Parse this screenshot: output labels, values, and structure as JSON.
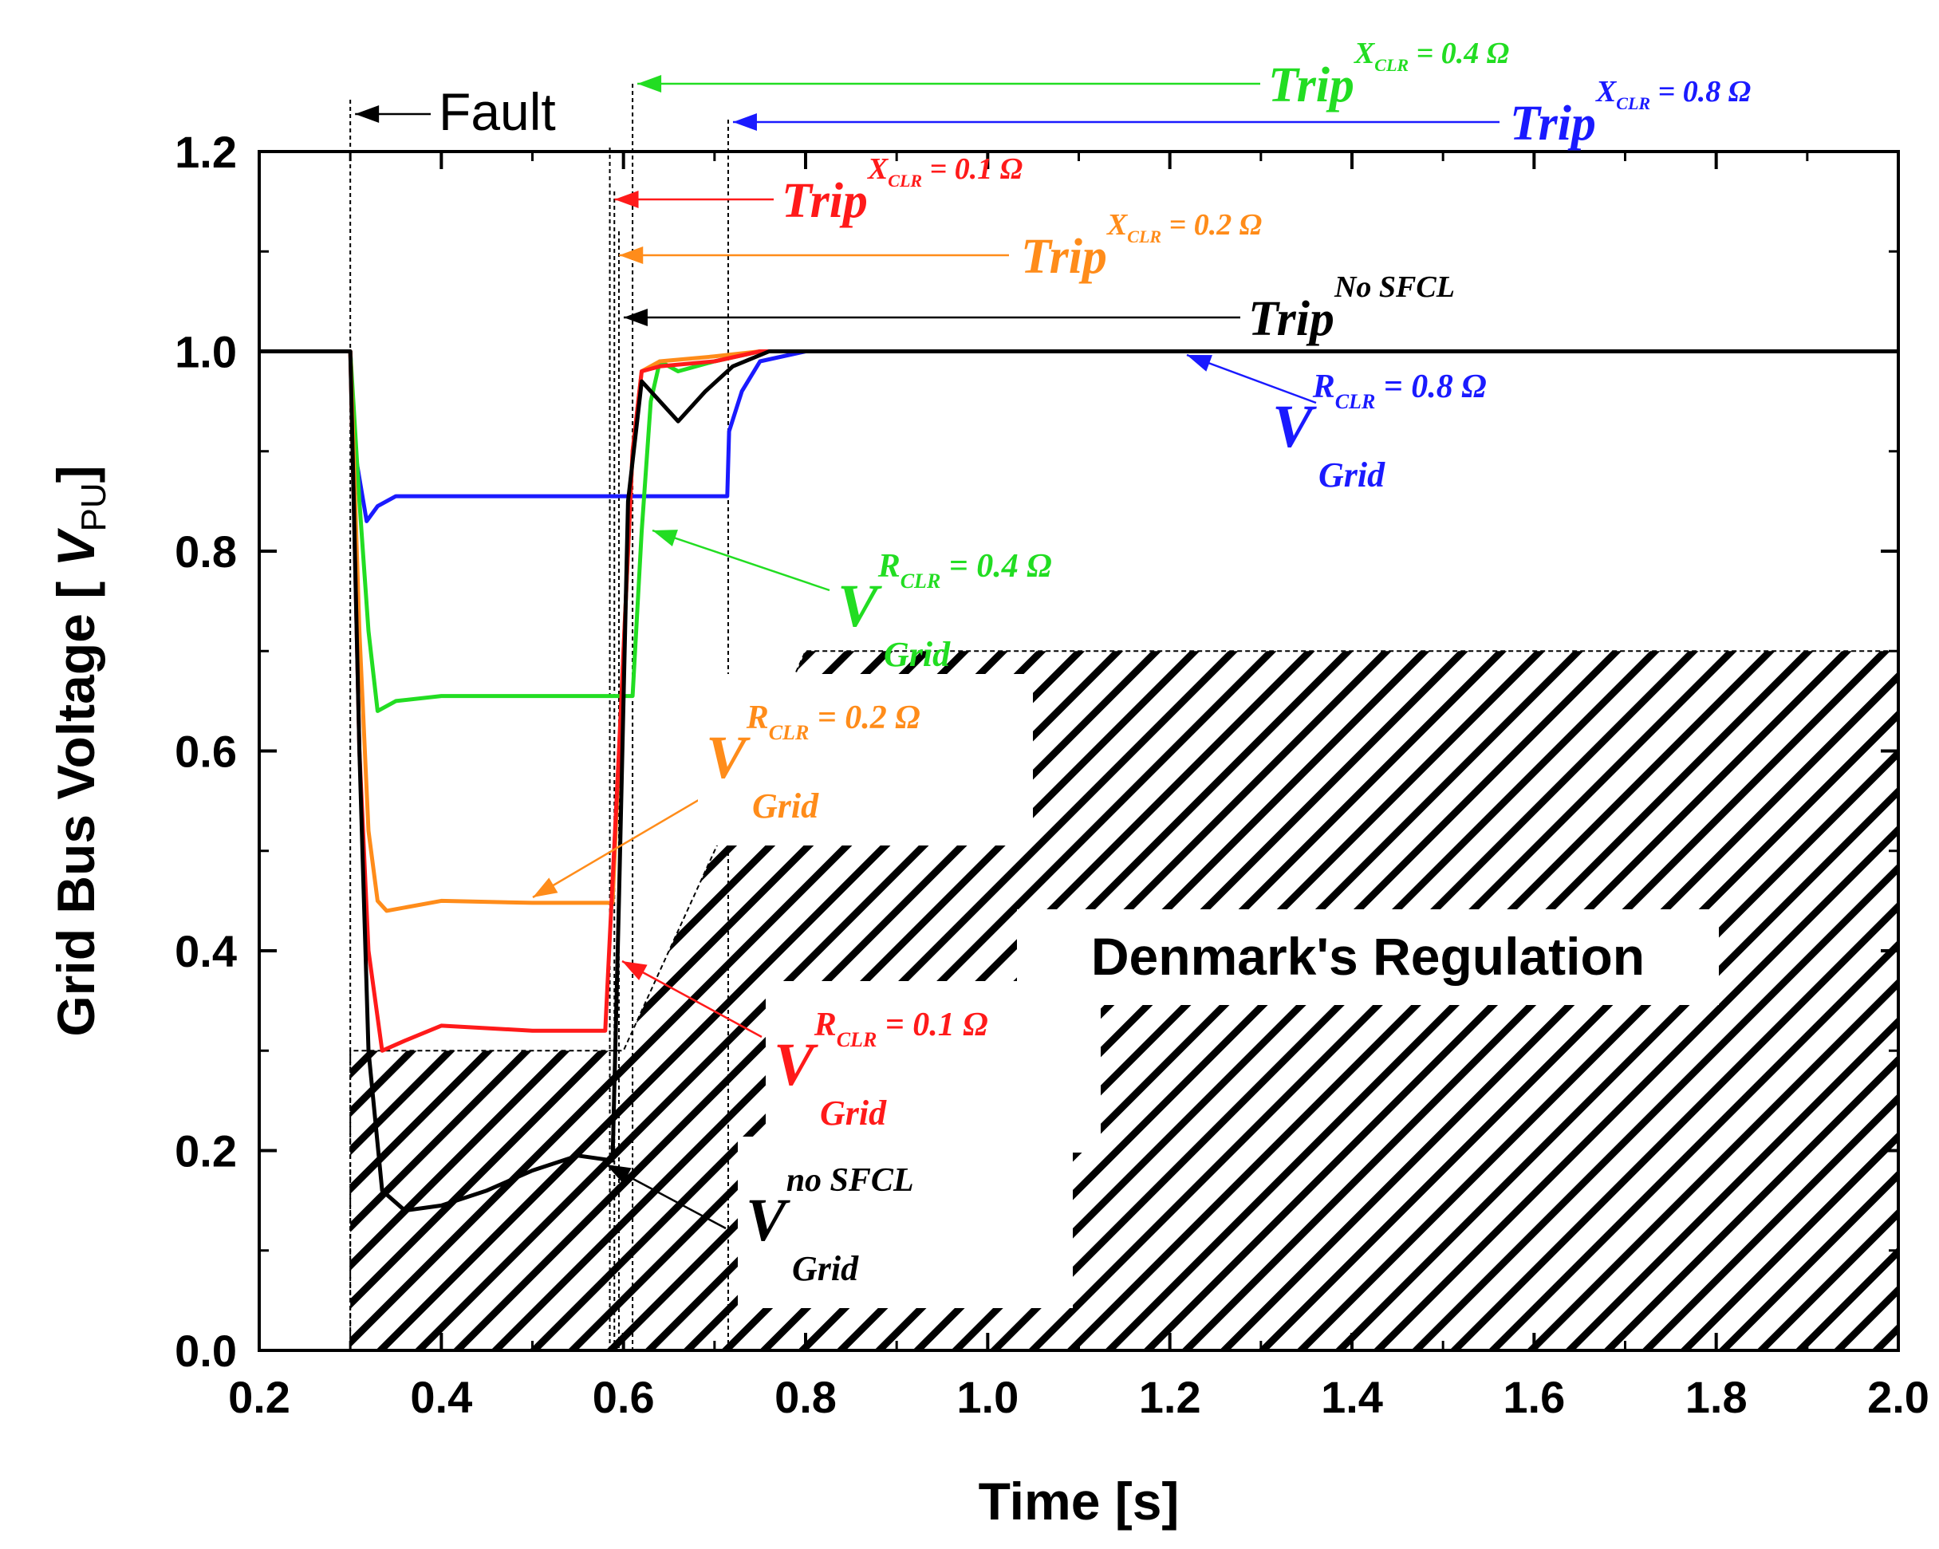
{
  "chart_data": {
    "type": "line",
    "title": "",
    "xlabel": "Time [s]",
    "ylabel_main": "Grid Bus Voltage [ ",
    "ylabel_sym": "V",
    "ylabel_sub": "PU",
    "ylabel_end": "]",
    "xlim": [
      0.2,
      2.0
    ],
    "ylim": [
      0.0,
      1.2
    ],
    "x_ticks": [
      "0.2",
      "0.4",
      "0.6",
      "0.8",
      "1.0",
      "1.2",
      "1.4",
      "1.6",
      "1.8",
      "2.0"
    ],
    "y_ticks": [
      "0.0",
      "0.2",
      "0.4",
      "0.6",
      "0.8",
      "1.0",
      "1.2"
    ],
    "fault_time": 0.3,
    "series": [
      {
        "name": "V_Grid R_CLR = 0.8 Ω",
        "color": "#1a1aff",
        "trip_time": 0.715,
        "points": [
          [
            0.2,
            1.0
          ],
          [
            0.3,
            1.0
          ],
          [
            0.305,
            0.9
          ],
          [
            0.318,
            0.83
          ],
          [
            0.33,
            0.845
          ],
          [
            0.35,
            0.855
          ],
          [
            0.45,
            0.855
          ],
          [
            0.55,
            0.855
          ],
          [
            0.714,
            0.855
          ],
          [
            0.716,
            0.92
          ],
          [
            0.73,
            0.96
          ],
          [
            0.75,
            0.99
          ],
          [
            0.8,
            1.0
          ],
          [
            2.0,
            1.0
          ]
        ]
      },
      {
        "name": "V_Grid R_CLR = 0.4 Ω",
        "color": "#22dd22",
        "trip_time": 0.61,
        "points": [
          [
            0.2,
            1.0
          ],
          [
            0.3,
            1.0
          ],
          [
            0.31,
            0.85
          ],
          [
            0.32,
            0.72
          ],
          [
            0.33,
            0.64
          ],
          [
            0.35,
            0.65
          ],
          [
            0.4,
            0.655
          ],
          [
            0.5,
            0.655
          ],
          [
            0.61,
            0.655
          ],
          [
            0.62,
            0.82
          ],
          [
            0.63,
            0.95
          ],
          [
            0.64,
            0.99
          ],
          [
            0.66,
            0.98
          ],
          [
            0.7,
            0.99
          ],
          [
            0.75,
            1.0
          ],
          [
            2.0,
            1.0
          ]
        ]
      },
      {
        "name": "V_Grid R_CLR = 0.2 Ω",
        "color": "#ff8c1a",
        "trip_time": 0.59,
        "points": [
          [
            0.2,
            1.0
          ],
          [
            0.3,
            1.0
          ],
          [
            0.31,
            0.72
          ],
          [
            0.32,
            0.52
          ],
          [
            0.33,
            0.45
          ],
          [
            0.34,
            0.44
          ],
          [
            0.4,
            0.45
          ],
          [
            0.5,
            0.448
          ],
          [
            0.588,
            0.448
          ],
          [
            0.6,
            0.7
          ],
          [
            0.61,
            0.9
          ],
          [
            0.62,
            0.98
          ],
          [
            0.64,
            0.99
          ],
          [
            0.7,
            0.995
          ],
          [
            0.75,
            1.0
          ],
          [
            2.0,
            1.0
          ]
        ]
      },
      {
        "name": "V_Grid R_CLR = 0.1 Ω",
        "color": "#ff1a1a",
        "trip_time": 0.585,
        "points": [
          [
            0.2,
            1.0
          ],
          [
            0.3,
            1.0
          ],
          [
            0.31,
            0.6
          ],
          [
            0.32,
            0.4
          ],
          [
            0.335,
            0.3
          ],
          [
            0.36,
            0.31
          ],
          [
            0.4,
            0.325
          ],
          [
            0.5,
            0.32
          ],
          [
            0.58,
            0.32
          ],
          [
            0.595,
            0.6
          ],
          [
            0.61,
            0.9
          ],
          [
            0.62,
            0.98
          ],
          [
            0.64,
            0.985
          ],
          [
            0.7,
            0.99
          ],
          [
            0.75,
            1.0
          ],
          [
            2.0,
            1.0
          ]
        ]
      },
      {
        "name": "V_Grid no SFCL",
        "color": "#000000",
        "trip_time": 0.59,
        "points": [
          [
            0.2,
            1.0
          ],
          [
            0.3,
            1.0
          ],
          [
            0.31,
            0.6
          ],
          [
            0.32,
            0.3
          ],
          [
            0.335,
            0.16
          ],
          [
            0.36,
            0.14
          ],
          [
            0.4,
            0.145
          ],
          [
            0.45,
            0.16
          ],
          [
            0.5,
            0.18
          ],
          [
            0.55,
            0.195
          ],
          [
            0.588,
            0.19
          ],
          [
            0.595,
            0.45
          ],
          [
            0.605,
            0.85
          ],
          [
            0.62,
            0.97
          ],
          [
            0.64,
            0.95
          ],
          [
            0.66,
            0.93
          ],
          [
            0.69,
            0.96
          ],
          [
            0.72,
            0.985
          ],
          [
            0.76,
            1.0
          ],
          [
            2.0,
            1.0
          ]
        ]
      }
    ],
    "trip_annotations": [
      {
        "word": "Trip",
        "sup": "X",
        "sub": "CLR",
        "value": " = 0.4 Ω",
        "color": "#22dd22",
        "time": 0.61
      },
      {
        "word": "Trip",
        "sup": "X",
        "sub": "CLR",
        "value": " = 0.8 Ω",
        "color": "#1a1aff",
        "time": 0.715
      },
      {
        "word": "Trip",
        "sup": "X",
        "sub": "CLR",
        "value": " = 0.1 Ω",
        "color": "#ff1a1a",
        "time": 0.585
      },
      {
        "word": "Trip",
        "sup": "X",
        "sub": "CLR",
        "value": " = 0.2 Ω",
        "color": "#ff8c1a",
        "time": 0.59
      },
      {
        "word": "Trip",
        "sup": "No SFCL",
        "sub": "",
        "value": "",
        "color": "#000000",
        "time": 0.595
      }
    ],
    "voltage_annotations": [
      {
        "word": "V",
        "sup": "R",
        "sup_sub": "CLR",
        "value": " = 0.8 Ω",
        "sub": "Grid",
        "color": "#1a1aff"
      },
      {
        "word": "V",
        "sup": "R",
        "sup_sub": "CLR",
        "value": " = 0.4 Ω",
        "sub": "Grid",
        "color": "#22dd22"
      },
      {
        "word": "V",
        "sup": "R",
        "sup_sub": "CLR",
        "value": " = 0.2 Ω",
        "sub": "Grid",
        "color": "#ff8c1a"
      },
      {
        "word": "V",
        "sup": "R",
        "sup_sub": "CLR",
        "value": " = 0.1 Ω",
        "sub": "Grid",
        "color": "#ff1a1a"
      },
      {
        "word": "V",
        "sup": "no SFCL",
        "sup_sub": "",
        "value": "",
        "sub": "Grid",
        "color": "#000000"
      }
    ],
    "fault_label": "Fault",
    "region_label": "Denmark's Regulation",
    "regulation_region": [
      [
        0.3,
        0.0
      ],
      [
        0.3,
        0.3
      ],
      [
        0.6,
        0.3
      ],
      [
        0.8,
        0.7
      ],
      [
        2.0,
        0.7
      ],
      [
        2.0,
        0.0
      ]
    ]
  }
}
